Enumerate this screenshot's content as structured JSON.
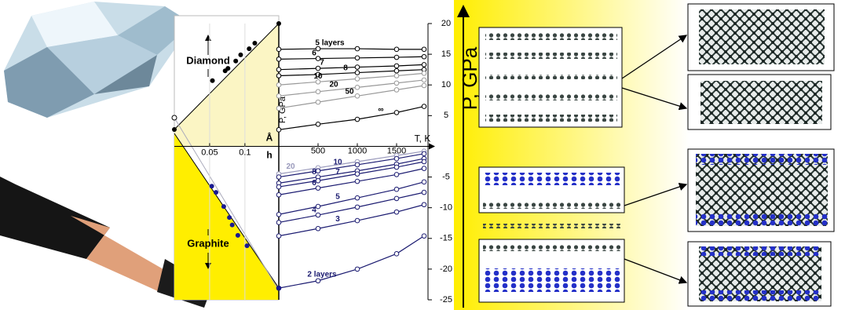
{
  "chart_data": [
    {
      "type": "line",
      "x_label": "T, K",
      "y_label": "P, GPa",
      "xlim": [
        0,
        1900
      ],
      "xticks": [
        500,
        1000,
        1500
      ],
      "ylim": [
        -25,
        20
      ],
      "yticks": [
        20,
        15,
        10,
        5,
        -5,
        -10,
        -15,
        -20,
        -25
      ],
      "x": [
        0,
        500,
        1000,
        1500,
        1850
      ],
      "series": [
        {
          "name": "5 layers",
          "color": "#000000",
          "values": [
            15.8,
            15.9,
            15.9,
            15.8,
            15.8
          ]
        },
        {
          "name": "6",
          "color": "#000000",
          "values": [
            14.2,
            14.3,
            14.4,
            14.5,
            14.6
          ]
        },
        {
          "name": "7",
          "color": "#000000",
          "values": [
            12.5,
            12.7,
            12.9,
            13.1,
            13.3
          ]
        },
        {
          "name": "8",
          "color": "#000000",
          "values": [
            11.5,
            11.7,
            12.0,
            12.3,
            12.5
          ]
        },
        {
          "name": "10",
          "color": "#999999",
          "values": [
            10.0,
            10.5,
            11.0,
            11.5,
            11.9
          ]
        },
        {
          "name": "20",
          "color": "#999999",
          "values": [
            8.2,
            8.9,
            9.6,
            10.3,
            10.8
          ]
        },
        {
          "name": "50",
          "color": "#999999",
          "values": [
            6.2,
            7.2,
            8.2,
            9.2,
            9.9
          ]
        },
        {
          "name": "∞",
          "color": "#000000",
          "values": [
            2.7,
            3.6,
            4.4,
            5.5,
            6.5
          ]
        },
        {
          "name": "20",
          "color": "#9999bb",
          "values": [
            -4.5,
            -3.5,
            -2.5,
            -1.5,
            -0.8
          ]
        },
        {
          "name": "10",
          "color": "#1a1a70",
          "values": [
            -5.0,
            -4.0,
            -3.0,
            -2.0,
            -1.2
          ]
        },
        {
          "name": "8",
          "color": "#1a1a70",
          "values": [
            -6.0,
            -5.0,
            -4.0,
            -2.9,
            -2.0
          ]
        },
        {
          "name": "7",
          "color": "#1a1a70",
          "values": [
            -6.6,
            -5.6,
            -4.5,
            -3.4,
            -2.5
          ]
        },
        {
          "name": "6",
          "color": "#1a1a70",
          "values": [
            -7.9,
            -6.8,
            -5.7,
            -4.6,
            -3.6
          ]
        },
        {
          "name": "5",
          "color": "#1a1a70",
          "values": [
            -11.1,
            -9.8,
            -8.4,
            -7.0,
            -5.8
          ]
        },
        {
          "name": "4",
          "color": "#1a1a70",
          "values": [
            -12.4,
            -11.2,
            -9.9,
            -8.5,
            -7.5
          ]
        },
        {
          "name": "3",
          "color": "#1a1a70",
          "values": [
            -14.6,
            -13.4,
            -12.1,
            -10.7,
            -9.5
          ]
        },
        {
          "name": "2 layers",
          "color": "#1a1a70",
          "values": [
            -23.1,
            -21.9,
            -20.0,
            -17.5,
            -14.6
          ]
        }
      ]
    },
    {
      "type": "scatter",
      "x_label": "h",
      "x_unit": "Å",
      "annotations": [
        "Diamond",
        "Graphite"
      ],
      "xlim": [
        0,
        0.148
      ],
      "xticks": [
        0.05,
        0.1
      ],
      "ylim": [
        -25,
        20
      ],
      "series": [
        {
          "name": "Diamond",
          "color": "#000000",
          "x": [
            0.054,
            0.072,
            0.076,
            0.087,
            0.094,
            0.106,
            0.114,
            0.148
          ],
          "values": [
            10.7,
            12.3,
            12.7,
            13.9,
            14.9,
            15.9,
            16.8,
            20
          ]
        },
        {
          "name": "Graphite",
          "color": "#1a1a90",
          "x": [
            0.053,
            0.059,
            0.07,
            0.078,
            0.082,
            0.09,
            0.103,
            0.148
          ],
          "values": [
            -6.5,
            -7.5,
            -9.8,
            -11.6,
            -12.8,
            -14.5,
            -16.2,
            -23.1
          ]
        }
      ]
    }
  ],
  "side_label": "P, GPa"
}
